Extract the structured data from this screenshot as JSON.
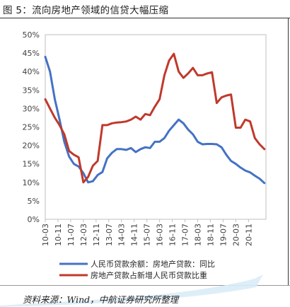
{
  "figure_title": "图  5：流向房地产领域的信贷大幅压缩",
  "source_note": "资料来源：Wind，中航证券研究所整理",
  "chart_data": {
    "type": "line",
    "title": "图  5：流向房地产领域的信贷大幅压缩",
    "xlabel": "",
    "ylabel": "",
    "ylim": [
      0,
      50
    ],
    "y_ticks": [
      "0%",
      "5%",
      "10%",
      "15%",
      "20%",
      "25%",
      "30%",
      "35%",
      "40%",
      "45%",
      "50%"
    ],
    "x_range": [
      2010.167,
      2021.75
    ],
    "x_tick_labels": [
      "10-03",
      "10-11",
      "11-07",
      "12-03",
      "12-11",
      "13-07",
      "14-03",
      "14-11",
      "15-07",
      "16-03",
      "16-11",
      "17-07",
      "18-03",
      "18-11",
      "19-07",
      "20-03",
      "20-11"
    ],
    "grid": false,
    "legend_position": "bottom",
    "series": [
      {
        "name": "人民币贷款余额：房地产贷款：同比",
        "color": "#4472C4",
        "points": [
          [
            2010.167,
            44.0
          ],
          [
            2010.417,
            40.0
          ],
          [
            2010.667,
            32.5
          ],
          [
            2010.917,
            27.0
          ],
          [
            2011.167,
            21.0
          ],
          [
            2011.417,
            17.0
          ],
          [
            2011.667,
            15.0
          ],
          [
            2011.917,
            14.3
          ],
          [
            2012.167,
            12.5
          ],
          [
            2012.417,
            10.0
          ],
          [
            2012.667,
            10.3
          ],
          [
            2012.917,
            12.0
          ],
          [
            2013.167,
            12.8
          ],
          [
            2013.417,
            16.5
          ],
          [
            2013.667,
            18.0
          ],
          [
            2013.917,
            19.0
          ],
          [
            2014.167,
            19.0
          ],
          [
            2014.417,
            18.8
          ],
          [
            2014.667,
            19.3
          ],
          [
            2014.917,
            18.2
          ],
          [
            2015.167,
            19.0
          ],
          [
            2015.417,
            19.5
          ],
          [
            2015.667,
            19.3
          ],
          [
            2015.917,
            21.0
          ],
          [
            2016.167,
            21.0
          ],
          [
            2016.417,
            22.0
          ],
          [
            2016.667,
            24.0
          ],
          [
            2016.917,
            25.5
          ],
          [
            2017.167,
            27.0
          ],
          [
            2017.417,
            26.0
          ],
          [
            2017.667,
            24.3
          ],
          [
            2017.917,
            23.0
          ],
          [
            2018.167,
            21.0
          ],
          [
            2018.417,
            20.3
          ],
          [
            2018.667,
            20.4
          ],
          [
            2018.917,
            20.4
          ],
          [
            2019.167,
            20.3
          ],
          [
            2019.417,
            19.5
          ],
          [
            2019.667,
            17.5
          ],
          [
            2019.917,
            15.8
          ],
          [
            2020.167,
            15.0
          ],
          [
            2020.417,
            14.0
          ],
          [
            2020.667,
            13.2
          ],
          [
            2020.917,
            12.7
          ],
          [
            2021.167,
            11.8
          ],
          [
            2021.417,
            11.0
          ],
          [
            2021.667,
            9.8
          ]
        ]
      },
      {
        "name": "房地产贷款占新增人民币贷款比重",
        "color": "#C0392B",
        "points": [
          [
            2010.167,
            32.5
          ],
          [
            2010.417,
            30.0
          ],
          [
            2010.667,
            27.5
          ],
          [
            2010.917,
            25.5
          ],
          [
            2011.167,
            23.0
          ],
          [
            2011.417,
            18.5
          ],
          [
            2011.667,
            17.5
          ],
          [
            2011.917,
            16.8
          ],
          [
            2012.167,
            10.0
          ],
          [
            2012.417,
            11.5
          ],
          [
            2012.667,
            14.5
          ],
          [
            2012.917,
            15.8
          ],
          [
            2013.167,
            25.5
          ],
          [
            2013.417,
            25.5
          ],
          [
            2013.667,
            26.0
          ],
          [
            2013.917,
            26.2
          ],
          [
            2014.167,
            26.3
          ],
          [
            2014.417,
            26.5
          ],
          [
            2014.667,
            27.0
          ],
          [
            2014.917,
            27.8
          ],
          [
            2015.167,
            27.0
          ],
          [
            2015.417,
            28.5
          ],
          [
            2015.667,
            28.2
          ],
          [
            2015.917,
            30.5
          ],
          [
            2016.167,
            32.5
          ],
          [
            2016.417,
            39.0
          ],
          [
            2016.667,
            43.0
          ],
          [
            2016.917,
            44.8
          ],
          [
            2017.167,
            40.0
          ],
          [
            2017.417,
            38.3
          ],
          [
            2017.667,
            39.5
          ],
          [
            2017.917,
            41.0
          ],
          [
            2018.167,
            39.0
          ],
          [
            2018.417,
            39.0
          ],
          [
            2018.667,
            39.5
          ],
          [
            2018.917,
            39.8
          ],
          [
            2019.167,
            31.5
          ],
          [
            2019.417,
            33.0
          ],
          [
            2019.667,
            33.5
          ],
          [
            2019.917,
            33.8
          ],
          [
            2020.167,
            24.8
          ],
          [
            2020.417,
            24.8
          ],
          [
            2020.667,
            27.0
          ],
          [
            2020.917,
            26.5
          ],
          [
            2021.167,
            22.0
          ],
          [
            2021.417,
            20.3
          ],
          [
            2021.667,
            19.0
          ]
        ]
      }
    ]
  }
}
